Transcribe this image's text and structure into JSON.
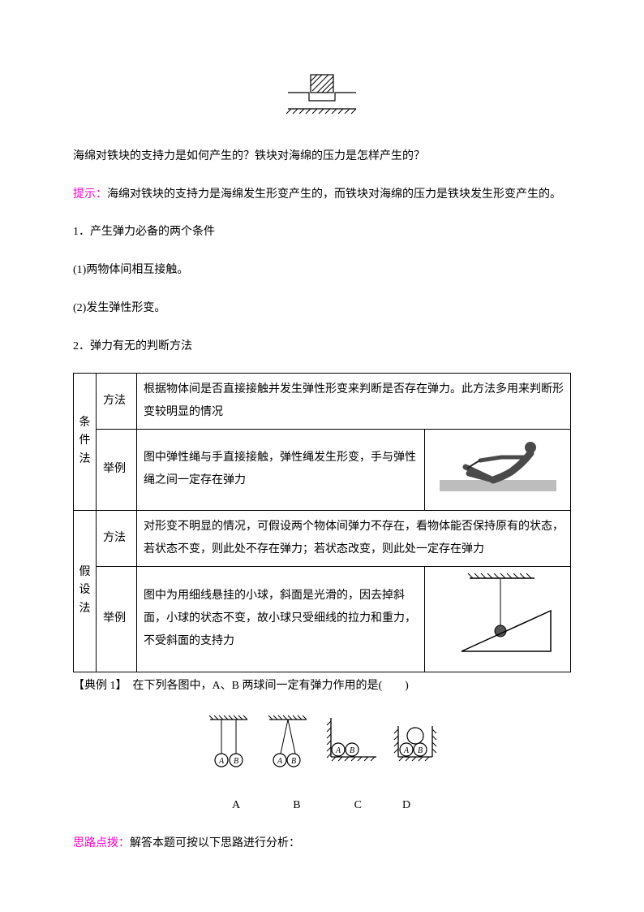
{
  "figure1": {
    "stroke": "#000000",
    "hatch_stroke": "#000000"
  },
  "q1": "海绵对铁块的支持力是如何产生的？铁块对海绵的压力是怎样产生的？",
  "hint": {
    "label": "提示：",
    "text": "海绵对铁块的支持力是海绵发生形变产生的，而铁块对海绵的压力是铁块发生形变产生的。"
  },
  "sec1": {
    "title": "1．产生弹力必备的两个条件",
    "i1": "(1)两物体间相互接触。",
    "i2": "(2)发生弹性形变。"
  },
  "sec2": {
    "title": "2．弹力有无的判断方法"
  },
  "table": {
    "r1c1": "条件法",
    "r1c2": "方法",
    "r1c3": "根据物体间是否直接接触并发生弹性形变来判断是否存在弹力。此方法多用来判断形变较明显的情况",
    "r2c2": "举例",
    "r2c3": "图中弹性绳与手直接接触，弹性绳发生形变，手与弹性绳之间一定存在弹力",
    "r3c1": "假设法",
    "r3c2": "方法",
    "r3c3": "对形变不明显的情况，可假设两个物体间弹力不存在，看物体能否保持原有的状态，若状态不变，则此处不存在弹力；若状态改变，则此处一定存在弹力",
    "r4c2": "举例",
    "r4c3": "图中为用细线悬挂的小球，斜面是光滑的，因去掉斜面，小球的状态不变，故小球只受细线的拉力和重力，不受斜面的支持力"
  },
  "example": {
    "label": "【典例 1】",
    "text": "　在下列各图中，A、B 两球间一定有弹力作用的是(　　)"
  },
  "options": {
    "optA": {
      "letter": "A"
    },
    "optB": {
      "letter": "B"
    },
    "optC": {
      "letter": "C"
    },
    "optD": {
      "letter": "D"
    }
  },
  "option_row": "A　　　　B　　　　C　　　D",
  "analysis": {
    "label": "思路点拨：",
    "text": "解答本题可按以下思路进行分析："
  },
  "colors": {
    "accent": "#ff00cc",
    "text": "#000000",
    "border": "#000000"
  }
}
